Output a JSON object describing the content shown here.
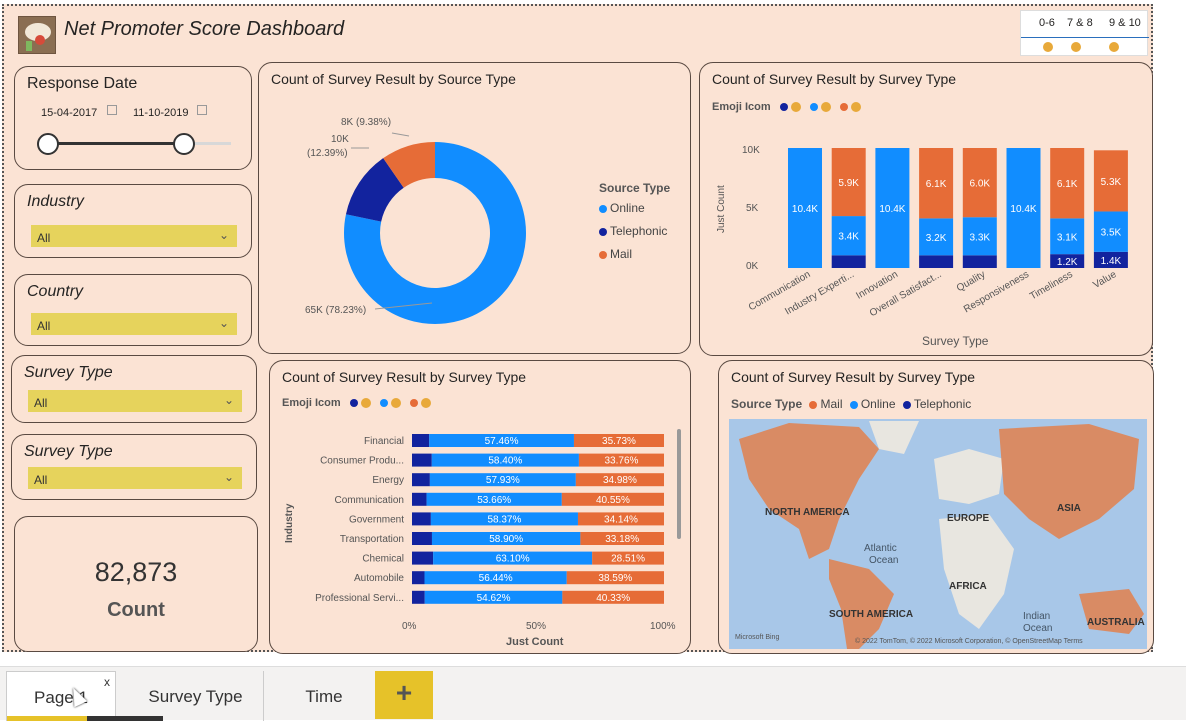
{
  "header": {
    "title": "Net Promoter Score Dashboard"
  },
  "nps_legend": {
    "ranges": [
      "0-6",
      "7 & 8",
      "9 & 10"
    ]
  },
  "slicers": {
    "response_date": {
      "title": "Response Date",
      "start": "15-04-2017",
      "end": "11-10-2019"
    },
    "industry": {
      "title": "Industry",
      "value": "All"
    },
    "country": {
      "title": "Country",
      "value": "All"
    },
    "survey_type_1": {
      "title": "Survey Type",
      "value": "All"
    },
    "survey_type_2": {
      "title": "Survey Type",
      "value": "All"
    }
  },
  "card": {
    "value": "82,873",
    "label": "Count"
  },
  "donut": {
    "title": "Count of Survey Result by Source Type",
    "legend_title": "Source Type",
    "labels": {
      "mail": "8K (9.38%)",
      "tele_a": "10K",
      "tele_b": "(12.39%)",
      "online": "65K (78.23%)"
    },
    "legend": [
      "Online",
      "Telephonic",
      "Mail"
    ]
  },
  "colors": {
    "online": "#118dff",
    "telephonic": "#12239e",
    "mail": "#e66c37",
    "emoji": "#e8a93a",
    "accent": "#e6d35c"
  },
  "stacked": {
    "title": "Count of Survey Result by Survey Type",
    "legend_title": "Emoji Icom",
    "ylabel": "Just Count",
    "xlabel": "Survey Type",
    "ticks": [
      "10K",
      "5K",
      "0K"
    ]
  },
  "hbar": {
    "title": "Count of Survey Result by Survey Type",
    "legend_title": "Emoji Icom",
    "ylabel": "Industry",
    "xlabel": "Just Count",
    "ticks": [
      "0%",
      "50%",
      "100%"
    ]
  },
  "map": {
    "title": "Count of Survey Result by Survey Type",
    "legend_title": "Source Type",
    "legend": [
      "Mail",
      "Online",
      "Telephonic"
    ],
    "labels": {
      "na": "NORTH AMERICA",
      "eu": "EUROPE",
      "asia": "ASIA",
      "africa": "AFRICA",
      "sa": "SOUTH AMERICA",
      "au": "AUSTRALIA",
      "atl_a": "Atlantic",
      "atl_b": "Ocean",
      "ind_a": "Indian",
      "ind_b": "Ocean"
    },
    "credit": "© 2022 TomTom, © 2022 Microsoft Corporation, © OpenStreetMap  Terms",
    "bing": "Microsoft Bing"
  },
  "chart_data": [
    {
      "type": "bar",
      "title": "Count of Survey Result by Survey Type",
      "xlabel": "Survey Type",
      "ylabel": "Just Count",
      "ylim": [
        0,
        10400
      ],
      "categories": [
        "Communication",
        "Industry Experti...",
        "Innovation",
        "Overall Satisfact...",
        "Quality",
        "Responsiveness",
        "Timeliness",
        "Value"
      ],
      "series": [
        {
          "name": "0-6",
          "values": [
            0,
            1100,
            0,
            1100,
            1100,
            0,
            1200,
            1400
          ],
          "labels": [
            "",
            "",
            "",
            "",
            "",
            "",
            "1.2K",
            "1.4K"
          ]
        },
        {
          "name": "7 & 8",
          "values": [
            10400,
            3400,
            10400,
            3200,
            3300,
            10400,
            3100,
            3500
          ],
          "labels": [
            "10.4K",
            "3.4K",
            "10.4K",
            "3.2K",
            "3.3K",
            "10.4K",
            "3.1K",
            "3.5K"
          ]
        },
        {
          "name": "9 & 10",
          "values": [
            0,
            5900,
            0,
            6100,
            6000,
            0,
            6100,
            5300
          ],
          "labels": [
            "",
            "5.9K",
            "",
            "6.1K",
            "6.0K",
            "",
            "6.1K",
            "5.3K"
          ]
        }
      ]
    },
    {
      "type": "bar",
      "orientation": "horizontal",
      "title": "Count of Survey Result by Survey Type",
      "xlabel": "Just Count",
      "ylabel": "Industry",
      "xlim": [
        0,
        100
      ],
      "categories": [
        "Financial",
        "Consumer Produ...",
        "Energy",
        "Communication",
        "Government",
        "Transportation",
        "Chemical",
        "Automobile",
        "Professional Servi..."
      ],
      "series": [
        {
          "name": "0-6",
          "values": [
            6.81,
            7.84,
            7.09,
            5.79,
            7.49,
            7.92,
            8.39,
            4.97,
            5.05
          ]
        },
        {
          "name": "7 & 8",
          "values": [
            57.46,
            58.4,
            57.93,
            53.66,
            58.37,
            58.9,
            63.1,
            56.44,
            54.62
          ],
          "labels": [
            "57.46%",
            "58.40%",
            "57.93%",
            "53.66%",
            "58.37%",
            "58.90%",
            "63.10%",
            "56.44%",
            "54.62%"
          ]
        },
        {
          "name": "9 & 10",
          "values": [
            35.73,
            33.76,
            34.98,
            40.55,
            34.14,
            33.18,
            28.51,
            38.59,
            40.33
          ],
          "labels": [
            "35.73%",
            "33.76%",
            "34.98%",
            "40.55%",
            "34.14%",
            "33.18%",
            "28.51%",
            "38.59%",
            "40.33%"
          ]
        }
      ]
    },
    {
      "type": "pie",
      "title": "Count of Survey Result by Source Type",
      "categories": [
        "Online",
        "Telephonic",
        "Mail"
      ],
      "values": [
        65,
        10,
        8
      ],
      "percentages": [
        78.23,
        12.39,
        9.38
      ]
    }
  ],
  "tabs": [
    {
      "label": "Page 1"
    },
    {
      "label": "Survey Type"
    },
    {
      "label": "Time"
    }
  ],
  "tabbar": {
    "close": "x",
    "add": "+"
  }
}
